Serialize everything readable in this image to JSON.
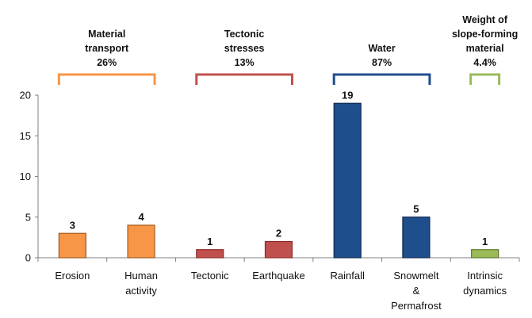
{
  "chart_data": {
    "type": "bar",
    "ylim": [
      0,
      20
    ],
    "yticks": [
      0,
      5,
      10,
      15,
      20
    ],
    "grid": false,
    "categories": [
      [
        "Erosion"
      ],
      [
        "Human",
        "activity"
      ],
      [
        "Tectonic"
      ],
      [
        "Earthquake"
      ],
      [
        "Rainfall"
      ],
      [
        "Snowmelt",
        "&",
        "Permafrost"
      ],
      [
        "Intrinsic",
        "dynamics"
      ]
    ],
    "values": [
      3,
      4,
      1,
      2,
      19,
      5,
      1
    ],
    "data_labels": [
      "3",
      "4",
      "1",
      "2",
      "19",
      "5",
      "1"
    ],
    "bar_groups": [
      0,
      0,
      1,
      1,
      2,
      2,
      3
    ],
    "groups": [
      {
        "title": [
          "Material",
          "transport",
          "26%"
        ],
        "color": "#f79646",
        "fill": "#f79646",
        "stroke": "#a35a1d",
        "categories": [
          0,
          1
        ]
      },
      {
        "title": [
          "Tectonic",
          "stresses",
          "13%"
        ],
        "color": "#c0504d",
        "fill": "#c0504d",
        "stroke": "#8a2b28",
        "categories": [
          2,
          3
        ]
      },
      {
        "title": [
          "Water",
          "87%"
        ],
        "color": "#1f4e8c",
        "fill": "#1f4e8c",
        "stroke": "#102a52",
        "categories": [
          4,
          5
        ]
      },
      {
        "title": [
          "Weight of",
          "slope-forming",
          "material",
          "4.4%"
        ],
        "color": "#9bbb59",
        "fill": "#9bbb59",
        "stroke": "#5e7a2a",
        "categories": [
          6,
          6
        ]
      }
    ]
  }
}
